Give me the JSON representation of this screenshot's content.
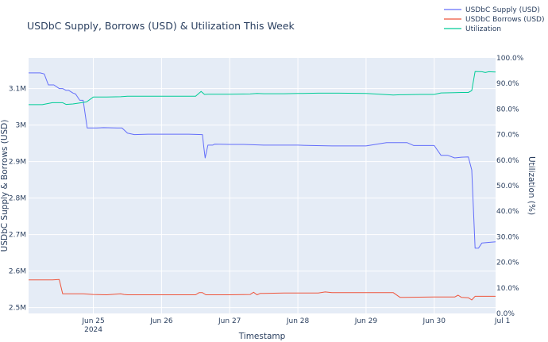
{
  "chart_data": {
    "type": "line",
    "title": "USDbC Supply, Borrows (USD) & Utilization This Week",
    "xlabel": "Timestamp",
    "ylabel": "USDbC Supply & Borrows (USD)",
    "y2label": "Utilization (%)",
    "x_ticks": [
      "Jun 25",
      "Jun 26",
      "Jun 27",
      "Jun 28",
      "Jun 29",
      "Jun 30",
      "Jul 1"
    ],
    "x_tick_sub": "2024",
    "y_ticks": [
      "2.5M",
      "2.6M",
      "2.7M",
      "2.8M",
      "2.9M",
      "3M",
      "3.1M"
    ],
    "y_tick_values": [
      2500000,
      2600000,
      2700000,
      2800000,
      2900000,
      3000000,
      3100000
    ],
    "y2_ticks": [
      "0.0%",
      "10.0%",
      "20.0%",
      "30.0%",
      "40.0%",
      "50.0%",
      "60.0%",
      "70.0%",
      "80.0%",
      "90.0%",
      "100.0%"
    ],
    "xlim_days": [
      -0.95,
      5.9
    ],
    "ylim": [
      2484000,
      3184000
    ],
    "y2lim": [
      0,
      100
    ],
    "colors": {
      "supply": "#636efa",
      "borrows": "#ef553b",
      "utilization": "#00cc96",
      "plot_bg": "#e5ecf6",
      "grid": "#ffffff"
    },
    "series": [
      {
        "name": "USDbC Supply (USD)",
        "axis": "y",
        "x": [
          -0.95,
          -0.78,
          -0.72,
          -0.66,
          -0.58,
          -0.5,
          -0.45,
          -0.4,
          -0.36,
          -0.3,
          -0.26,
          -0.2,
          -0.15,
          -0.09,
          0,
          0.05,
          0.15,
          0.35,
          0.42,
          0.5,
          0.6,
          0.8,
          1.0,
          1.2,
          1.4,
          1.6,
          1.62,
          1.64,
          1.68,
          1.75,
          1.78,
          2.0,
          2.2,
          2.5,
          2.8,
          3.0,
          3.2,
          3.5,
          3.8,
          4.0,
          4.3,
          4.4,
          4.6,
          4.7,
          4.75,
          5.0,
          5.1,
          5.2,
          5.3,
          5.4,
          5.5,
          5.55,
          5.6,
          5.65,
          5.7,
          5.9
        ],
        "values": [
          3143000,
          3143000,
          3140000,
          3110000,
          3110000,
          3100000,
          3100000,
          3095000,
          3095000,
          3088000,
          3085000,
          3068000,
          3068000,
          2992000,
          2992000,
          2992000,
          2993000,
          2992000,
          2992000,
          2978000,
          2974000,
          2975000,
          2975000,
          2975000,
          2975000,
          2974000,
          2940000,
          2910000,
          2945000,
          2945000,
          2948000,
          2947000,
          2947000,
          2945000,
          2945000,
          2945000,
          2944000,
          2943000,
          2943000,
          2943000,
          2952000,
          2952000,
          2952000,
          2944000,
          2944000,
          2944000,
          2917000,
          2917000,
          2910000,
          2912000,
          2913000,
          2877000,
          2663000,
          2663000,
          2677000,
          2680000
        ]
      },
      {
        "name": "USDbC Borrows (USD)",
        "axis": "y",
        "x": [
          -0.95,
          -0.6,
          -0.5,
          -0.45,
          -0.3,
          -0.15,
          0,
          0.2,
          0.4,
          0.45,
          0.5,
          0.55,
          0.7,
          1.0,
          1.5,
          1.55,
          1.6,
          1.65,
          2.0,
          2.3,
          2.35,
          2.4,
          2.45,
          2.5,
          2.8,
          3.0,
          3.3,
          3.4,
          3.5,
          4.0,
          4.4,
          4.5,
          5.0,
          5.3,
          5.35,
          5.4,
          5.5,
          5.55,
          5.6,
          5.7,
          5.9
        ],
        "values": [
          2576000,
          2576000,
          2577000,
          2538000,
          2538000,
          2538000,
          2536000,
          2535000,
          2538000,
          2536000,
          2535000,
          2535000,
          2535000,
          2535000,
          2535000,
          2541000,
          2541000,
          2535000,
          2535000,
          2536000,
          2542000,
          2535000,
          2539000,
          2539000,
          2540000,
          2540000,
          2540000,
          2543000,
          2541000,
          2541000,
          2541000,
          2528000,
          2529000,
          2529000,
          2534000,
          2528000,
          2527000,
          2521000,
          2531000,
          2531000,
          2531000
        ]
      },
      {
        "name": "Utilization",
        "axis": "y2",
        "x": [
          -0.95,
          -0.75,
          -0.6,
          -0.45,
          -0.4,
          -0.3,
          -0.2,
          -0.1,
          0,
          0.2,
          0.4,
          0.5,
          1.0,
          1.3,
          1.5,
          1.58,
          1.63,
          1.68,
          2.0,
          2.3,
          2.4,
          2.5,
          2.8,
          3.0,
          3.3,
          3.6,
          4.0,
          4.4,
          4.5,
          4.8,
          5.0,
          5.1,
          5.3,
          5.4,
          5.5,
          5.55,
          5.6,
          5.7,
          5.75,
          5.8,
          5.9
        ],
        "values": [
          81.7,
          81.7,
          82.5,
          82.5,
          81.8,
          82.0,
          82.4,
          82.8,
          84.7,
          84.7,
          84.8,
          85.0,
          85.0,
          85.0,
          85.0,
          86.9,
          85.7,
          85.8,
          85.8,
          85.9,
          86.1,
          86.0,
          86.0,
          86.1,
          86.2,
          86.2,
          86.1,
          85.5,
          85.6,
          85.7,
          85.7,
          86.3,
          86.4,
          86.5,
          86.5,
          87.2,
          94.7,
          94.6,
          94.3,
          94.6,
          94.5
        ]
      }
    ],
    "legend": {
      "placement": "top-right"
    }
  }
}
